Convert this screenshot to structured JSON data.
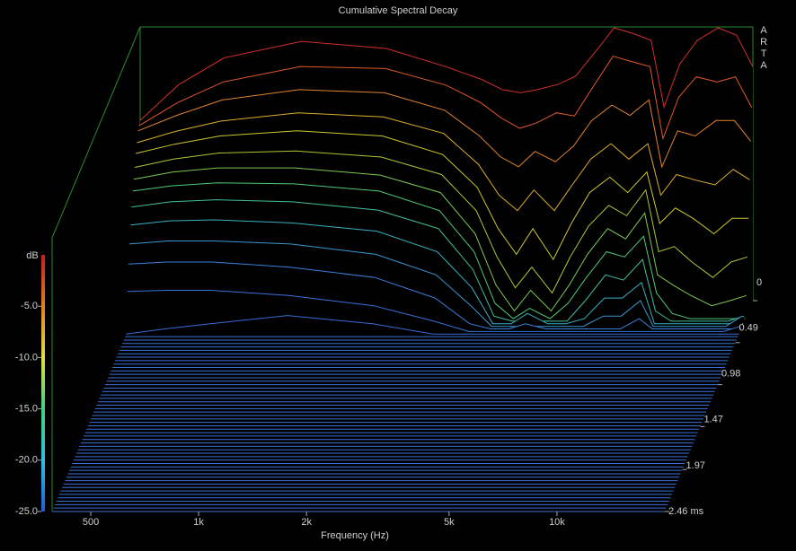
{
  "chart_data": {
    "type": "waterfall",
    "title": "Cumulative Spectral Decay",
    "watermark": "ARTA",
    "xlabel": "Frequency (Hz)",
    "zlabel": "dB",
    "xscale": "log",
    "xlim": [
      390,
      20000
    ],
    "xticks": [
      500,
      {
        "value": 1000,
        "label": "1k"
      },
      {
        "value": 2000,
        "label": "2k"
      },
      {
        "value": 5000,
        "label": "5k"
      },
      {
        "value": 10000,
        "label": "10k"
      }
    ],
    "zlim": [
      -25,
      1.6
    ],
    "clim": [
      -25,
      0
    ],
    "zticks": [
      {
        "value": -5,
        "label": "-5.0"
      },
      {
        "value": -10,
        "label": "-10.0"
      },
      {
        "value": -15,
        "label": "-15.0"
      },
      {
        "value": -20,
        "label": "-20.0"
      },
      {
        "value": -25,
        "label": "-25.0"
      }
    ],
    "tlim": [
      0,
      2.46
    ],
    "tticks": [
      0,
      0.49,
      0.98,
      1.47,
      1.97,
      {
        "value": 2.46,
        "label": "2.46 ms"
      }
    ],
    "colormap": [
      "#1e5ed8",
      "#2ec0e0",
      "#40d080",
      "#e0e040",
      "#e08020",
      "#c41e1e"
    ],
    "frame_color": "#2f8a2f",
    "floor_color": "#3b6fd6",
    "x": [
      390,
      500,
      670,
      1100,
      1900,
      2800,
      3500,
      4000,
      4500,
      5000,
      5700,
      6400,
      7200,
      8200,
      9200,
      10400,
      11300,
      12500,
      14000,
      16000,
      18000,
      20000
    ],
    "series": [
      {
        "time": 0,
        "color": "#d0302a",
        "values": [
          -7.5,
          -4.0,
          -1.4,
          0.2,
          -0.5,
          -2.3,
          -3.5,
          -4.5,
          -4.8,
          -4.5,
          -4.0,
          -3.2,
          -1.0,
          1.5,
          1.0,
          0.3,
          -6.2,
          -2.0,
          0.3,
          1.5,
          0.8,
          -2.3
        ]
      },
      {
        "time": 0.03,
        "color": "#e0582a",
        "values": [
          -7.75,
          -5.5,
          -3.5,
          -2.0,
          -2.2,
          -3.8,
          -5.5,
          -7.0,
          -8.0,
          -7.5,
          -6.5,
          -6.8,
          -4.0,
          -1.0,
          -1.5,
          -2.0,
          -9.0,
          -5.0,
          -3.0,
          -3.5,
          -3.0,
          -6.0
        ]
      },
      {
        "time": 0.06,
        "color": "#e08430",
        "values": [
          -8.0,
          -6.5,
          -5.0,
          -4.0,
          -4.3,
          -6.0,
          -8.5,
          -10.5,
          -11.5,
          -10.0,
          -11.0,
          -9.5,
          -7.0,
          -5.5,
          -6.5,
          -5.0,
          -11.5,
          -8.0,
          -8.5,
          -7.0,
          -7.0,
          -9.0
        ]
      },
      {
        "time": 0.09,
        "color": "#dcae30",
        "values": [
          -8.9,
          -7.8,
          -6.8,
          -6.0,
          -6.4,
          -8.0,
          -11.0,
          -14.0,
          -15.5,
          -13.5,
          -15.5,
          -13.0,
          -10.5,
          -9.0,
          -10.5,
          -9.0,
          -14.0,
          -12.0,
          -12.5,
          -13.0,
          -11.5,
          -12.5
        ]
      },
      {
        "time": 0.12,
        "color": "#ccc830",
        "values": [
          -9.7,
          -8.8,
          -8.0,
          -7.5,
          -8.0,
          -9.8,
          -13.0,
          -17.0,
          -19.5,
          -17.0,
          -20.0,
          -16.5,
          -13.5,
          -12.0,
          -13.5,
          -11.5,
          -16.5,
          -15.0,
          -16.0,
          -17.5,
          -16.0,
          -16.0
        ]
      },
      {
        "time": 0.15,
        "color": "#a8c838",
        "values": [
          -10.8,
          -10.0,
          -9.4,
          -9.2,
          -9.8,
          -11.5,
          -15.0,
          -19.5,
          -22.5,
          -20.5,
          -23.0,
          -19.5,
          -16.5,
          -14.5,
          -15.5,
          -13.0,
          -19.0,
          -18.5,
          -20.0,
          -21.5,
          -20.0,
          -19.5
        ]
      },
      {
        "time": 0.18,
        "color": "#7cc850",
        "values": [
          -11.7,
          -11.0,
          -10.6,
          -10.6,
          -11.3,
          -13.0,
          -17.0,
          -22.0,
          -24.5,
          -22.5,
          -24.5,
          -22.0,
          -19.0,
          -16.5,
          -17.5,
          -15.0,
          -21.0,
          -22.0,
          -23.0,
          -24.0,
          -23.5,
          -23.0
        ]
      },
      {
        "time": 0.21,
        "color": "#50c878",
        "values": [
          -12.6,
          -12.1,
          -11.8,
          -11.9,
          -12.6,
          -14.5,
          -18.5,
          -23.5,
          -25,
          -24.0,
          -25,
          -23.5,
          -21.0,
          -18.5,
          -19.0,
          -17.0,
          -22.5,
          -24.5,
          -25,
          -25,
          -25,
          -25
        ]
      },
      {
        "time": 0.24,
        "color": "#40c0a0",
        "values": [
          -13.9,
          -13.4,
          -13.2,
          -13.4,
          -14.2,
          -16.0,
          -20.0,
          -24.5,
          -25,
          -25,
          -25,
          -25,
          -23.0,
          -20.5,
          -21.0,
          -19.0,
          -24.0,
          -25,
          -25,
          -25,
          -25,
          -24.5
        ]
      },
      {
        "time": 0.27,
        "color": "#38b0c0",
        "values": [
          -15.4,
          -15.0,
          -14.9,
          -15.2,
          -16.0,
          -18.0,
          -21.5,
          -25,
          -25,
          -24.0,
          -25,
          -25,
          -24.5,
          -22.5,
          -22.5,
          -21.0,
          -25,
          -25,
          -25,
          -25,
          -25,
          -25
        ]
      },
      {
        "time": 0.3,
        "color": "#3898d0",
        "values": [
          -17.0,
          -16.7,
          -16.7,
          -17.0,
          -18.0,
          -20.0,
          -23.0,
          -25,
          -25,
          -25,
          -25,
          -25,
          -25,
          -24.0,
          -24.0,
          -22.5,
          -25,
          -25,
          -25,
          -25,
          -25,
          -24.0
        ]
      },
      {
        "time": 0.33,
        "color": "#3a80d8",
        "values": [
          -18.7,
          -18.5,
          -18.5,
          -19.0,
          -20.0,
          -22.0,
          -24.5,
          -25,
          -25,
          -24.5,
          -25,
          -25,
          -25,
          -25,
          -25,
          -24.0,
          -25,
          -25,
          -25,
          -25,
          -25,
          -25
        ]
      },
      {
        "time": 0.36,
        "color": "#3a72d8",
        "values": [
          -21.1,
          -21.0,
          -21.0,
          -21.5,
          -22.5,
          -24.0,
          -25,
          -25,
          -25,
          -25,
          -25,
          -25,
          -25,
          -25,
          -25,
          -25,
          -25,
          -25,
          -25,
          -25,
          -25,
          -24.5
        ]
      },
      {
        "time": 0.39,
        "color": "#3a6ad8",
        "values": [
          -25,
          -24.5,
          -24.0,
          -23.2,
          -24.0,
          -25,
          -25,
          -25,
          -25,
          -25,
          -25,
          -25,
          -25,
          -25,
          -25,
          -25,
          -25,
          -25,
          -25,
          -25,
          -25,
          -25
        ]
      }
    ],
    "floor_times": [
      0.42,
      0.46,
      0.5,
      0.54,
      0.58,
      0.62,
      0.66,
      0.7,
      0.74,
      0.78,
      0.82,
      0.86,
      0.9,
      0.94,
      0.98,
      1.02,
      1.06,
      1.1,
      1.14,
      1.18,
      1.22,
      1.26,
      1.3,
      1.34,
      1.38,
      1.42,
      1.46,
      1.5,
      1.54,
      1.58,
      1.62,
      1.66,
      1.7,
      1.74,
      1.78,
      1.82,
      1.86,
      1.9,
      1.94,
      1.98,
      2.02,
      2.06,
      2.1,
      2.14,
      2.18,
      2.22,
      2.26,
      2.3,
      2.34,
      2.38,
      2.42,
      2.46
    ]
  }
}
